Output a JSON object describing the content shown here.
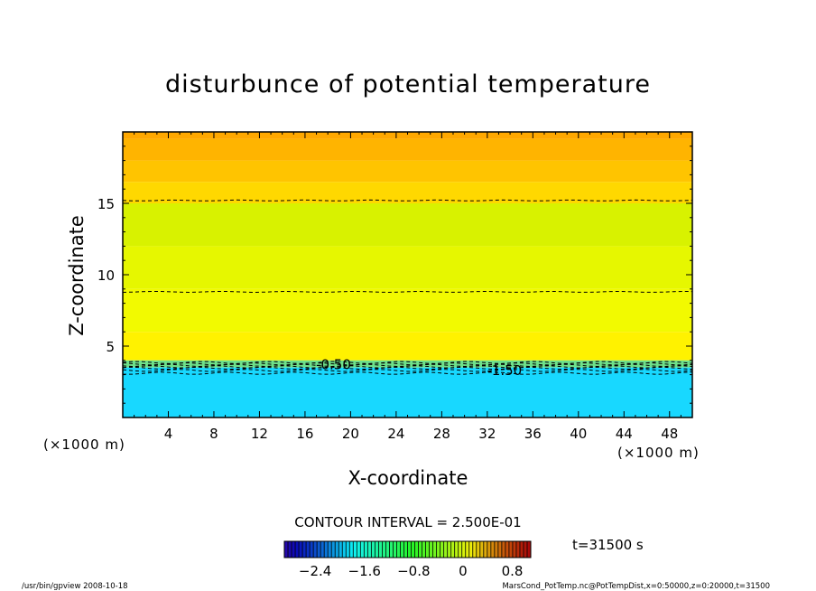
{
  "chart_data": {
    "type": "heatmap",
    "title": "disturbunce of potential temperature",
    "xlabel": "X-coordinate",
    "ylabel": "Z-coordinate",
    "x_unit_left": "(×1000 m)",
    "x_unit_right": "(×1000 m)",
    "xlim": [
      0,
      50
    ],
    "ylim": [
      0,
      20
    ],
    "x_ticks": [
      "4",
      "8",
      "12",
      "16",
      "20",
      "24",
      "28",
      "32",
      "36",
      "40",
      "44",
      "48"
    ],
    "y_ticks": [
      "5",
      "10",
      "15"
    ],
    "contour_interval_text": "CONTOUR INTERVAL = 2.500E-01",
    "time_text": "t=31500 s",
    "contour_labels": [
      {
        "text": "-0.50",
        "x": 18.5,
        "y": 3.7
      },
      {
        "text": "-1.50",
        "x": 33.5,
        "y": 3.3
      }
    ],
    "contour_levels_z": [
      15.2,
      8.8,
      3.85,
      3.75,
      3.65,
      3.55,
      3.45,
      3.3,
      3.1
    ],
    "colorbar": {
      "min": -2.9,
      "max": 1.1,
      "tick_labels": [
        "-2.4",
        "-1.6",
        "-0.8",
        "0",
        "0.8"
      ],
      "tick_values": [
        -2.4,
        -1.6,
        -0.8,
        0,
        0.8
      ]
    },
    "field_bands": [
      {
        "z_from": 19.5,
        "z_to": 20,
        "color": "#ffa800"
      },
      {
        "z_from": 18,
        "z_to": 19.5,
        "color": "#ffb400"
      },
      {
        "z_from": 16.5,
        "z_to": 18,
        "color": "#ffc400"
      },
      {
        "z_from": 15,
        "z_to": 16.5,
        "color": "#ffd800"
      },
      {
        "z_from": 12,
        "z_to": 15,
        "color": "#d8f200"
      },
      {
        "z_from": 9,
        "z_to": 12,
        "color": "#e6f700"
      },
      {
        "z_from": 6,
        "z_to": 9,
        "color": "#f2fa00"
      },
      {
        "z_from": 4,
        "z_to": 6,
        "color": "#fff200"
      },
      {
        "z_from": 3.5,
        "z_to": 4,
        "color": "#6ee08a"
      },
      {
        "z_from": 0,
        "z_to": 3.5,
        "color": "#18d8ff"
      }
    ]
  },
  "footer": {
    "left": "/usr/bin/gpview   2008-10-18",
    "right": "MarsCond_PotTemp.nc@PotTempDist,x=0:50000,z=0:20000,t=31500"
  }
}
